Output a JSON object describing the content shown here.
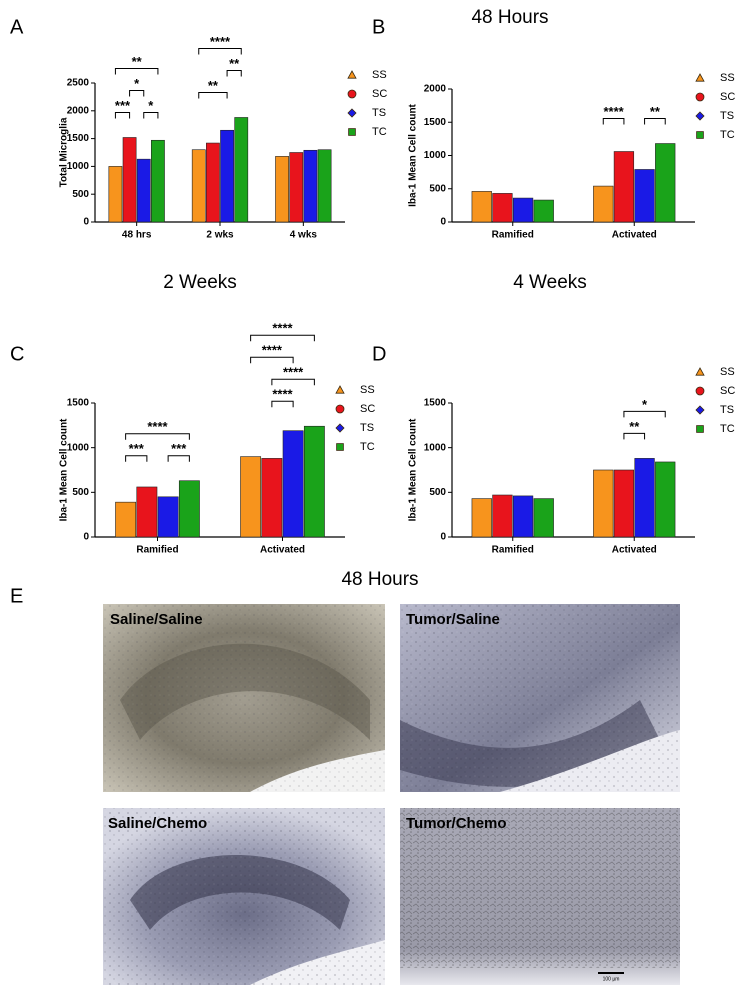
{
  "chart_data": [
    {
      "type": "bar",
      "panel": "A",
      "ylabel": "Total Microglia",
      "categories": [
        "48 hrs",
        "2 wks",
        "4 wks"
      ],
      "series": [
        {
          "name": "SS",
          "color": "#f7941d",
          "marker": "triangle",
          "values": [
            1000,
            1300,
            1180
          ]
        },
        {
          "name": "SC",
          "color": "#e8141c",
          "marker": "circle",
          "values": [
            1520,
            1420,
            1250
          ]
        },
        {
          "name": "TS",
          "color": "#1a1ae6",
          "marker": "diamond",
          "values": [
            1130,
            1650,
            1290
          ]
        },
        {
          "name": "TC",
          "color": "#1aa31a",
          "marker": "square",
          "values": [
            1470,
            1880,
            1300
          ]
        }
      ],
      "ylim": [
        0,
        2500
      ],
      "yticks": [
        0,
        500,
        1000,
        1500,
        2000,
        2500
      ],
      "comparisons": [
        {
          "label": "***",
          "category": 0,
          "from": 0,
          "to": 1
        },
        {
          "label": "*",
          "category": 0,
          "from": 2,
          "to": 3
        },
        {
          "label": "*",
          "category": 0,
          "from": 1,
          "to": 2
        },
        {
          "label": "**",
          "category": 0,
          "from": 0,
          "to": 3
        },
        {
          "label": "**",
          "category": 1,
          "from": 0,
          "to": 2
        },
        {
          "label": "**",
          "category": 1,
          "from": 2,
          "to": 3
        },
        {
          "label": "****",
          "category": 1,
          "from": 0,
          "to": 3
        }
      ]
    },
    {
      "type": "bar",
      "panel": "B",
      "title": "48 Hours",
      "ylabel": "Iba-1 Mean Cell count",
      "categories": [
        "Ramified",
        "Activated"
      ],
      "series": [
        {
          "name": "SS",
          "color": "#f7941d",
          "marker": "triangle",
          "values": [
            460,
            540
          ]
        },
        {
          "name": "SC",
          "color": "#e8141c",
          "marker": "circle",
          "values": [
            430,
            1060
          ]
        },
        {
          "name": "TS",
          "color": "#1a1ae6",
          "marker": "diamond",
          "values": [
            360,
            790
          ]
        },
        {
          "name": "TC",
          "color": "#1aa31a",
          "marker": "square",
          "values": [
            330,
            1180
          ]
        }
      ],
      "ylim": [
        0,
        2000
      ],
      "yticks": [
        0,
        500,
        1000,
        1500,
        2000
      ],
      "comparisons": [
        {
          "label": "****",
          "category": 1,
          "from": 0,
          "to": 1
        },
        {
          "label": "**",
          "category": 1,
          "from": 2,
          "to": 3
        }
      ]
    },
    {
      "type": "bar",
      "panel": "C",
      "title": "2 Weeks",
      "ylabel": "Iba-1 Mean Cell count",
      "categories": [
        "Ramified",
        "Activated"
      ],
      "series": [
        {
          "name": "SS",
          "color": "#f7941d",
          "marker": "triangle",
          "values": [
            390,
            900
          ]
        },
        {
          "name": "SC",
          "color": "#e8141c",
          "marker": "circle",
          "values": [
            560,
            880
          ]
        },
        {
          "name": "TS",
          "color": "#1a1ae6",
          "marker": "diamond",
          "values": [
            450,
            1190
          ]
        },
        {
          "name": "TC",
          "color": "#1aa31a",
          "marker": "square",
          "values": [
            630,
            1240
          ]
        }
      ],
      "ylim": [
        0,
        1500
      ],
      "yticks": [
        0,
        500,
        1000,
        1500
      ],
      "comparisons": [
        {
          "label": "***",
          "category": 0,
          "from": 0,
          "to": 1
        },
        {
          "label": "***",
          "category": 0,
          "from": 2,
          "to": 3
        },
        {
          "label": "****",
          "category": 0,
          "from": 0,
          "to": 3
        },
        {
          "label": "****",
          "category": 1,
          "from": 1,
          "to": 2
        },
        {
          "label": "****",
          "category": 1,
          "from": 1,
          "to": 3
        },
        {
          "label": "****",
          "category": 1,
          "from": 0,
          "to": 2
        },
        {
          "label": "****",
          "category": 1,
          "from": 0,
          "to": 3
        }
      ]
    },
    {
      "type": "bar",
      "panel": "D",
      "title": "4 Weeks",
      "ylabel": "Iba-1 Mean Cell count",
      "categories": [
        "Ramified",
        "Activated"
      ],
      "series": [
        {
          "name": "SS",
          "color": "#f7941d",
          "marker": "triangle",
          "values": [
            430,
            750
          ]
        },
        {
          "name": "SC",
          "color": "#e8141c",
          "marker": "circle",
          "values": [
            470,
            750
          ]
        },
        {
          "name": "TS",
          "color": "#1a1ae6",
          "marker": "diamond",
          "values": [
            460,
            880
          ]
        },
        {
          "name": "TC",
          "color": "#1aa31a",
          "marker": "square",
          "values": [
            430,
            840
          ]
        }
      ],
      "ylim": [
        0,
        1500
      ],
      "yticks": [
        0,
        500,
        1000,
        1500
      ],
      "comparisons": [
        {
          "label": "**",
          "category": 1,
          "from": 1,
          "to": 2
        },
        {
          "label": "*",
          "category": 1,
          "from": 1,
          "to": 3
        }
      ]
    }
  ],
  "panel_e": {
    "panel": "E",
    "title": "48 Hours",
    "images": [
      {
        "label": "Saline/Saline"
      },
      {
        "label": "Tumor/Saline"
      },
      {
        "label": "Saline/Chemo"
      },
      {
        "label": "Tumor/Chemo"
      }
    ],
    "scale_bar": "100 µm"
  }
}
